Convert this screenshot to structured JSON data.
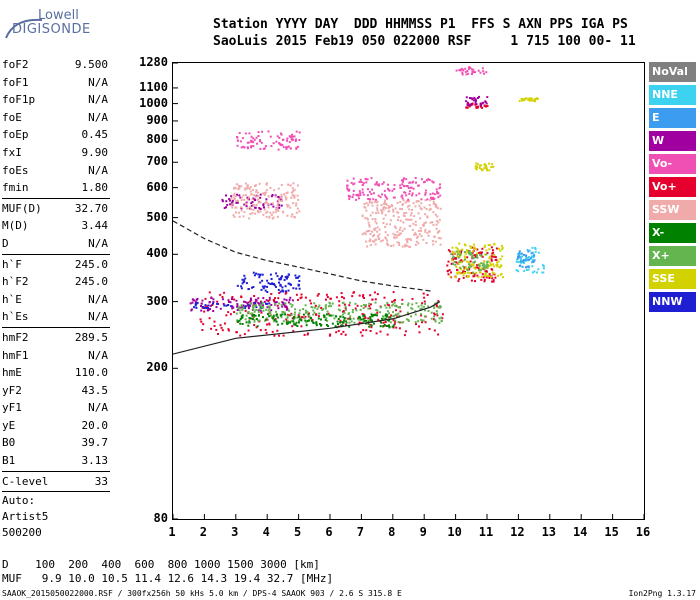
{
  "logo": {
    "line1": "Lowell",
    "line2": "DIGISONDE"
  },
  "header": {
    "line1": "Station YYYY DAY  DDD HHMMSS P1  FFS S AXN PPS IGA PS",
    "line2": "SaoLuis 2015 Feb19 050 022000 RSF     1 715 100 00- 11"
  },
  "params": [
    {
      "name": "foF2",
      "value": "9.500"
    },
    {
      "name": "foF1",
      "value": "N/A"
    },
    {
      "name": "foF1p",
      "value": "N/A"
    },
    {
      "name": "foE",
      "value": "N/A"
    },
    {
      "name": "foEp",
      "value": "0.45"
    },
    {
      "name": "fxI",
      "value": "9.90"
    },
    {
      "name": "foEs",
      "value": "N/A"
    },
    {
      "name": "fmin",
      "value": "1.80"
    },
    {
      "name": "MUF(D)",
      "value": "32.70"
    },
    {
      "name": "M(D)",
      "value": "3.44"
    },
    {
      "name": "D",
      "value": "N/A"
    },
    {
      "name": "h`F",
      "value": "245.0"
    },
    {
      "name": "h`F2",
      "value": "245.0"
    },
    {
      "name": "h`E",
      "value": "N/A"
    },
    {
      "name": "h`Es",
      "value": "N/A"
    },
    {
      "name": "hmF2",
      "value": "289.5"
    },
    {
      "name": "hmF1",
      "value": "N/A"
    },
    {
      "name": "hmE",
      "value": "110.0"
    },
    {
      "name": "yF2",
      "value": "43.5"
    },
    {
      "name": "yF1",
      "value": "N/A"
    },
    {
      "name": "yE",
      "value": "20.0"
    },
    {
      "name": "B0",
      "value": "39.7"
    },
    {
      "name": "B1",
      "value": "3.13"
    },
    {
      "name": "C-level",
      "value": "33"
    }
  ],
  "autoscale": {
    "label": "Auto:",
    "artist": "Artist5",
    "code": "500200"
  },
  "legend": [
    {
      "label": "NoVal",
      "color": "#808080"
    },
    {
      "label": "NNE",
      "color": "#3cd2f0"
    },
    {
      "label": "E",
      "color": "#3c9cf0"
    },
    {
      "label": "W",
      "color": "#a000a0"
    },
    {
      "label": "Vo-",
      "color": "#f050b4"
    },
    {
      "label": "Vo+",
      "color": "#e6002d"
    },
    {
      "label": "SSW",
      "color": "#f0aaaa"
    },
    {
      "label": "X-",
      "color": "#008200"
    },
    {
      "label": "X+",
      "color": "#64b450"
    },
    {
      "label": "SSE",
      "color": "#d2d200"
    },
    {
      "label": "NNW",
      "color": "#1e1ed2"
    }
  ],
  "footer": {
    "d_row": "D    100  200  400  600  800 1000 1500 3000 [km]",
    "muf_row": "MUF   9.9 10.0 10.5 11.4 12.6 14.3 19.4 32.7 [MHz]",
    "info": "SAAOK_2015050022000.RSF / 300fx256h 50 kHs 5.0 km / DPS-4 SAAOK 903 / 2.6 S 315.8 E",
    "version": "Ion2Png 1.3.17"
  },
  "chart_data": {
    "type": "scatter",
    "xlabel": "",
    "ylabel": "",
    "xlim": [
      1,
      16
    ],
    "ylim": [
      80,
      1280
    ],
    "y_scale": "log",
    "x_ticks": [
      "1",
      "2",
      "3",
      "4",
      "5",
      "6",
      "7",
      "8",
      "9",
      "10",
      "11",
      "12",
      "13",
      "14",
      "15",
      "16"
    ],
    "y_ticks": [
      "80",
      "200",
      "300",
      "400",
      "500",
      "600",
      "700",
      "800",
      "900",
      "1000",
      "1100",
      "1280"
    ],
    "grid": false,
    "legend_position": "right",
    "series": [
      {
        "name": "Vo+",
        "color": "#e6002d",
        "clusters": [
          [
            1.8,
            9.6,
            245,
            320
          ],
          [
            9.7,
            11.3,
            340,
            420
          ],
          [
            10.3,
            11.0,
            980,
            1010
          ]
        ]
      },
      {
        "name": "W",
        "color": "#a000a0",
        "clusters": [
          [
            1.5,
            4.8,
            285,
            310
          ],
          [
            10.3,
            11.0,
            990,
            1050
          ],
          [
            2.5,
            4.5,
            530,
            580
          ]
        ]
      },
      {
        "name": "NNW",
        "color": "#1e1ed2",
        "clusters": [
          [
            1.6,
            4.2,
            290,
            300
          ],
          [
            3.0,
            5.0,
            320,
            360
          ]
        ]
      },
      {
        "name": "SSE",
        "color": "#d2d200",
        "clusters": [
          [
            9.8,
            11.5,
            350,
            430
          ],
          [
            10.6,
            11.2,
            670,
            700
          ],
          [
            12.0,
            12.6,
            1020,
            1040
          ]
        ]
      },
      {
        "name": "X+",
        "color": "#64b450",
        "clusters": [
          [
            3.0,
            9.6,
            265,
            300
          ],
          [
            9.8,
            11.0,
            360,
            410
          ]
        ]
      },
      {
        "name": "X-",
        "color": "#008200",
        "clusters": [
          [
            3.0,
            8.0,
            258,
            280
          ]
        ]
      },
      {
        "name": "NNE",
        "color": "#3cd2f0",
        "clusters": [
          [
            11.9,
            12.8,
            360,
            420
          ]
        ]
      },
      {
        "name": "E",
        "color": "#3c9cf0",
        "clusters": [
          [
            11.9,
            12.5,
            370,
            410
          ]
        ]
      },
      {
        "name": "SSW",
        "color": "#f0aaaa",
        "clusters": [
          [
            7.0,
            9.5,
            420,
            560
          ],
          [
            2.8,
            5.0,
            500,
            620
          ]
        ]
      },
      {
        "name": "Vo-",
        "color": "#f050b4",
        "clusters": [
          [
            6.5,
            9.5,
            560,
            640
          ],
          [
            3.0,
            5.0,
            760,
            850
          ],
          [
            10.0,
            11.0,
            1200,
            1260
          ]
        ]
      }
    ],
    "curves": [
      {
        "name": "true-height profile",
        "style": "solid",
        "points": [
          [
            1.0,
            218
          ],
          [
            3,
            240
          ],
          [
            6,
            255
          ],
          [
            8,
            270
          ],
          [
            9.2,
            290
          ],
          [
            9.5,
            300
          ]
        ]
      },
      {
        "name": "model",
        "style": "dashed",
        "points": [
          [
            1.0,
            490
          ],
          [
            2.0,
            440
          ],
          [
            3.0,
            405
          ],
          [
            4.0,
            385
          ],
          [
            5.0,
            370
          ],
          [
            6.0,
            355
          ],
          [
            7.0,
            340
          ],
          [
            8.0,
            330
          ],
          [
            9.2,
            320
          ]
        ]
      }
    ]
  }
}
